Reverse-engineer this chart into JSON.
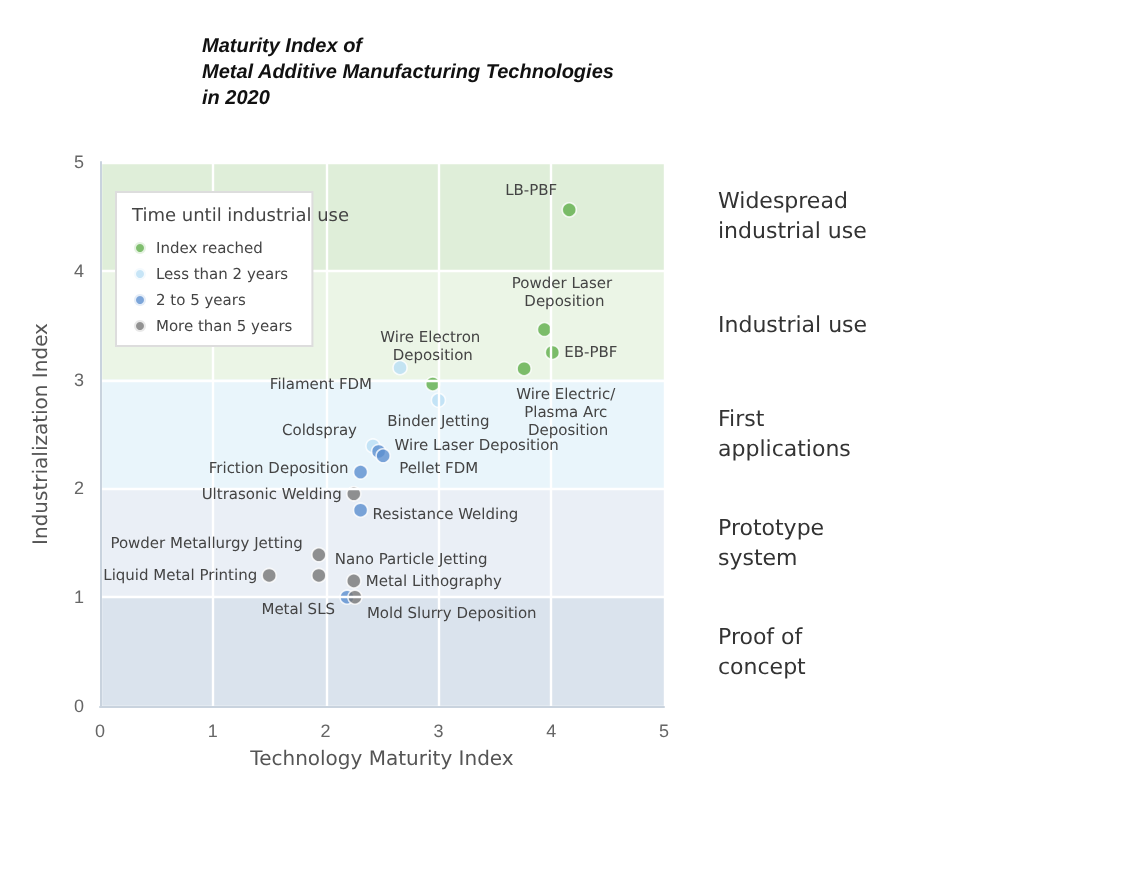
{
  "chart_data": {
    "type": "scatter",
    "title": "Maturity Index of\nMetal Additive Manufacturing Technologies\nin 2020",
    "xlabel": "Technology Maturity Index",
    "ylabel": "Industrialization Index",
    "xlim": [
      0,
      5
    ],
    "xticks": [
      0,
      1,
      2,
      3,
      4,
      5
    ],
    "ylim": [
      0,
      5
    ],
    "yticks": [
      0,
      1,
      2,
      3,
      4,
      5
    ],
    "grid": true,
    "legend": "top left",
    "legend_title": "Time until industrial use",
    "marker": "circle",
    "series": [
      {
        "name": "Index reached",
        "color": "#5fae4a",
        "x": [
          4.16,
          3.94,
          4.01,
          3.76,
          2.95
        ],
        "values": [
          4.56,
          3.46,
          3.25,
          3.1,
          2.96
        ]
      },
      {
        "name": "Less than 2 years",
        "color": "#b9def5",
        "x": [
          2.66,
          3.0,
          2.42
        ],
        "values": [
          3.11,
          2.81,
          2.39
        ]
      },
      {
        "name": "2 to 5 years",
        "color": "#5b8fd0",
        "x": [
          2.47,
          2.51,
          2.31,
          2.31,
          2.19
        ],
        "values": [
          2.34,
          2.3,
          2.15,
          1.8,
          1.0
        ]
      },
      {
        "name": "More than 5 years",
        "color": "#777777",
        "x": [
          2.25,
          1.94,
          1.94,
          1.5,
          2.25,
          2.26
        ],
        "values": [
          1.95,
          1.39,
          1.2,
          1.2,
          1.15,
          1.0
        ]
      }
    ],
    "bands": [
      {
        "axis": "y",
        "from": 4,
        "to": 5,
        "label": "Widespread\nindustrial use",
        "color": "#d4e8cc"
      },
      {
        "axis": "y",
        "from": 3,
        "to": 4,
        "label": "Industrial use",
        "color": "#e4f1de"
      },
      {
        "axis": "y",
        "from": 2,
        "to": 3,
        "label": "First\napplications",
        "color": "#e2f1fa"
      },
      {
        "axis": "y",
        "from": 1,
        "to": 2,
        "label": "Prototype\nsystem",
        "color": "#e3eaf3"
      },
      {
        "axis": "y",
        "from": 0,
        "to": 1,
        "label": "Proof of\nconcept",
        "color": "#cdd9e7"
      }
    ],
    "annotations": [
      {
        "text": "LB-PBF",
        "x": 4.16,
        "y": 4.56
      },
      {
        "text": "Powder Laser Deposition",
        "x": 3.94,
        "y": 3.46
      },
      {
        "text": "EB-PBF",
        "x": 4.01,
        "y": 3.25
      },
      {
        "text": "Wire Electric/ Plasma Arc Deposition",
        "x": 3.76,
        "y": 3.1
      },
      {
        "text": "Wire Electron Deposition",
        "x": 2.95,
        "y": 2.96
      },
      {
        "text": "Filament FDM",
        "x": 2.66,
        "y": 3.11
      },
      {
        "text": "Binder Jetting",
        "x": 3.0,
        "y": 2.81
      },
      {
        "text": "Coldspray",
        "x": 2.42,
        "y": 2.39
      },
      {
        "text": "Wire Laser Deposition",
        "x": 2.47,
        "y": 2.34
      },
      {
        "text": "Pellet FDM",
        "x": 2.51,
        "y": 2.3
      },
      {
        "text": "Friction Deposition",
        "x": 2.31,
        "y": 2.15
      },
      {
        "text": "Ultrasonic Welding",
        "x": 2.25,
        "y": 1.95
      },
      {
        "text": "Resistance Welding",
        "x": 2.31,
        "y": 1.8
      },
      {
        "text": "Powder Metallurgy Jetting",
        "x": 1.94,
        "y": 1.39
      },
      {
        "text": "Nano Particle Jetting",
        "x": 1.94,
        "y": 1.2
      },
      {
        "text": "Liquid Metal Printing",
        "x": 1.5,
        "y": 1.2
      },
      {
        "text": "Metal Lithography",
        "x": 2.25,
        "y": 1.15
      },
      {
        "text": "Metal SLS",
        "x": 2.19,
        "y": 1.0
      },
      {
        "text": "Mold Slurry Deposition",
        "x": 2.26,
        "y": 1.0
      }
    ]
  }
}
